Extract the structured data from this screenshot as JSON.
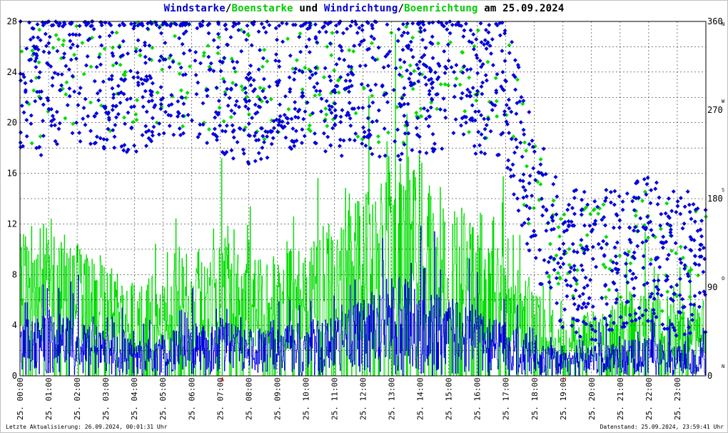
{
  "title": {
    "parts": [
      {
        "text": "Windstarke",
        "color": "#0000cc"
      },
      {
        "text": "/",
        "color": "#000000"
      },
      {
        "text": "Boenstarke",
        "color": "#00cc00"
      },
      {
        "text": " und ",
        "color": "#000000"
      },
      {
        "text": "Windrichtung",
        "color": "#0000cc"
      },
      {
        "text": "/",
        "color": "#000000"
      },
      {
        "text": "Boenrichtung",
        "color": "#00cc00"
      },
      {
        "text": " am 25.09.2024",
        "color": "#000000"
      }
    ]
  },
  "footer": {
    "left": "Letzte Aktualisierung: 26.09.2024, 00:01:31 Uhr",
    "right": "Datenstand: 25.09.2024, 23:59:41 Uhr"
  },
  "colors": {
    "wind": "#0000dd",
    "gust": "#00dd00",
    "grid": "#000000",
    "marker": "#cc0000"
  },
  "chart_data": {
    "type": "line",
    "x_tick_labels": [
      "25. 00:00",
      "25. 01:00",
      "25. 02:00",
      "25. 03:00",
      "25. 04:00",
      "25. 05:00",
      "25. 06:00",
      "25. 07:00",
      "25. 08:00",
      "25. 09:00",
      "25. 10:00",
      "25. 11:00",
      "25. 12:00",
      "25. 13:00",
      "25. 14:00",
      "25. 15:00",
      "25. 16:00",
      "25. 17:00",
      "25. 18:00",
      "25. 19:00",
      "25. 20:00",
      "25. 21:00",
      "25. 22:00",
      "25. 23:00"
    ],
    "y_left": {
      "ylim": [
        0,
        28
      ],
      "ticks": [
        "0",
        "4",
        "8",
        "12",
        "16",
        "20",
        "24",
        "28"
      ]
    },
    "y_right": {
      "ylim": [
        0,
        360
      ],
      "ticks": [
        "0",
        "90",
        "180",
        "270",
        "360"
      ],
      "compass": [
        "N",
        "O",
        "S",
        "W",
        "N"
      ]
    },
    "event_markers": [
      {
        "label": "A",
        "hour": 7.08
      },
      {
        "label": "U",
        "hour": 19.05
      }
    ],
    "grid": true,
    "series": [
      {
        "name": "Windstarke",
        "kind": "line",
        "hourly_mean": [
          2.6,
          3.0,
          2.5,
          2.0,
          1.6,
          1.8,
          2.2,
          2.6,
          2.0,
          2.2,
          2.4,
          2.9,
          3.3,
          4.6,
          4.0,
          3.4,
          2.9,
          2.3,
          1.6,
          1.0,
          1.3,
          1.5,
          1.8,
          1.4
        ]
      },
      {
        "name": "Boenstarke",
        "kind": "line",
        "hourly_mean": [
          7.5,
          8.5,
          7.0,
          6.0,
          5.0,
          5.5,
          6.8,
          7.5,
          6.0,
          6.5,
          7.0,
          8.5,
          9.5,
          12.5,
          11.0,
          9.5,
          8.0,
          6.5,
          4.5,
          3.0,
          3.5,
          4.0,
          5.5,
          4.0
        ]
      },
      {
        "name": "Windrichtung",
        "kind": "scatter",
        "hourly_mean_deg": [
          290,
          300,
          310,
          305,
          300,
          320,
          310,
          300,
          290,
          300,
          310,
          295,
          300,
          290,
          300,
          305,
          300,
          290,
          180,
          120,
          110,
          120,
          130,
          115
        ]
      },
      {
        "name": "Boenrichtung",
        "kind": "scatter",
        "hourly_mean_deg": [
          290,
          300,
          310,
          305,
          300,
          320,
          310,
          300,
          290,
          300,
          310,
          295,
          300,
          290,
          300,
          305,
          300,
          290,
          180,
          120,
          110,
          120,
          130,
          115
        ]
      }
    ]
  }
}
